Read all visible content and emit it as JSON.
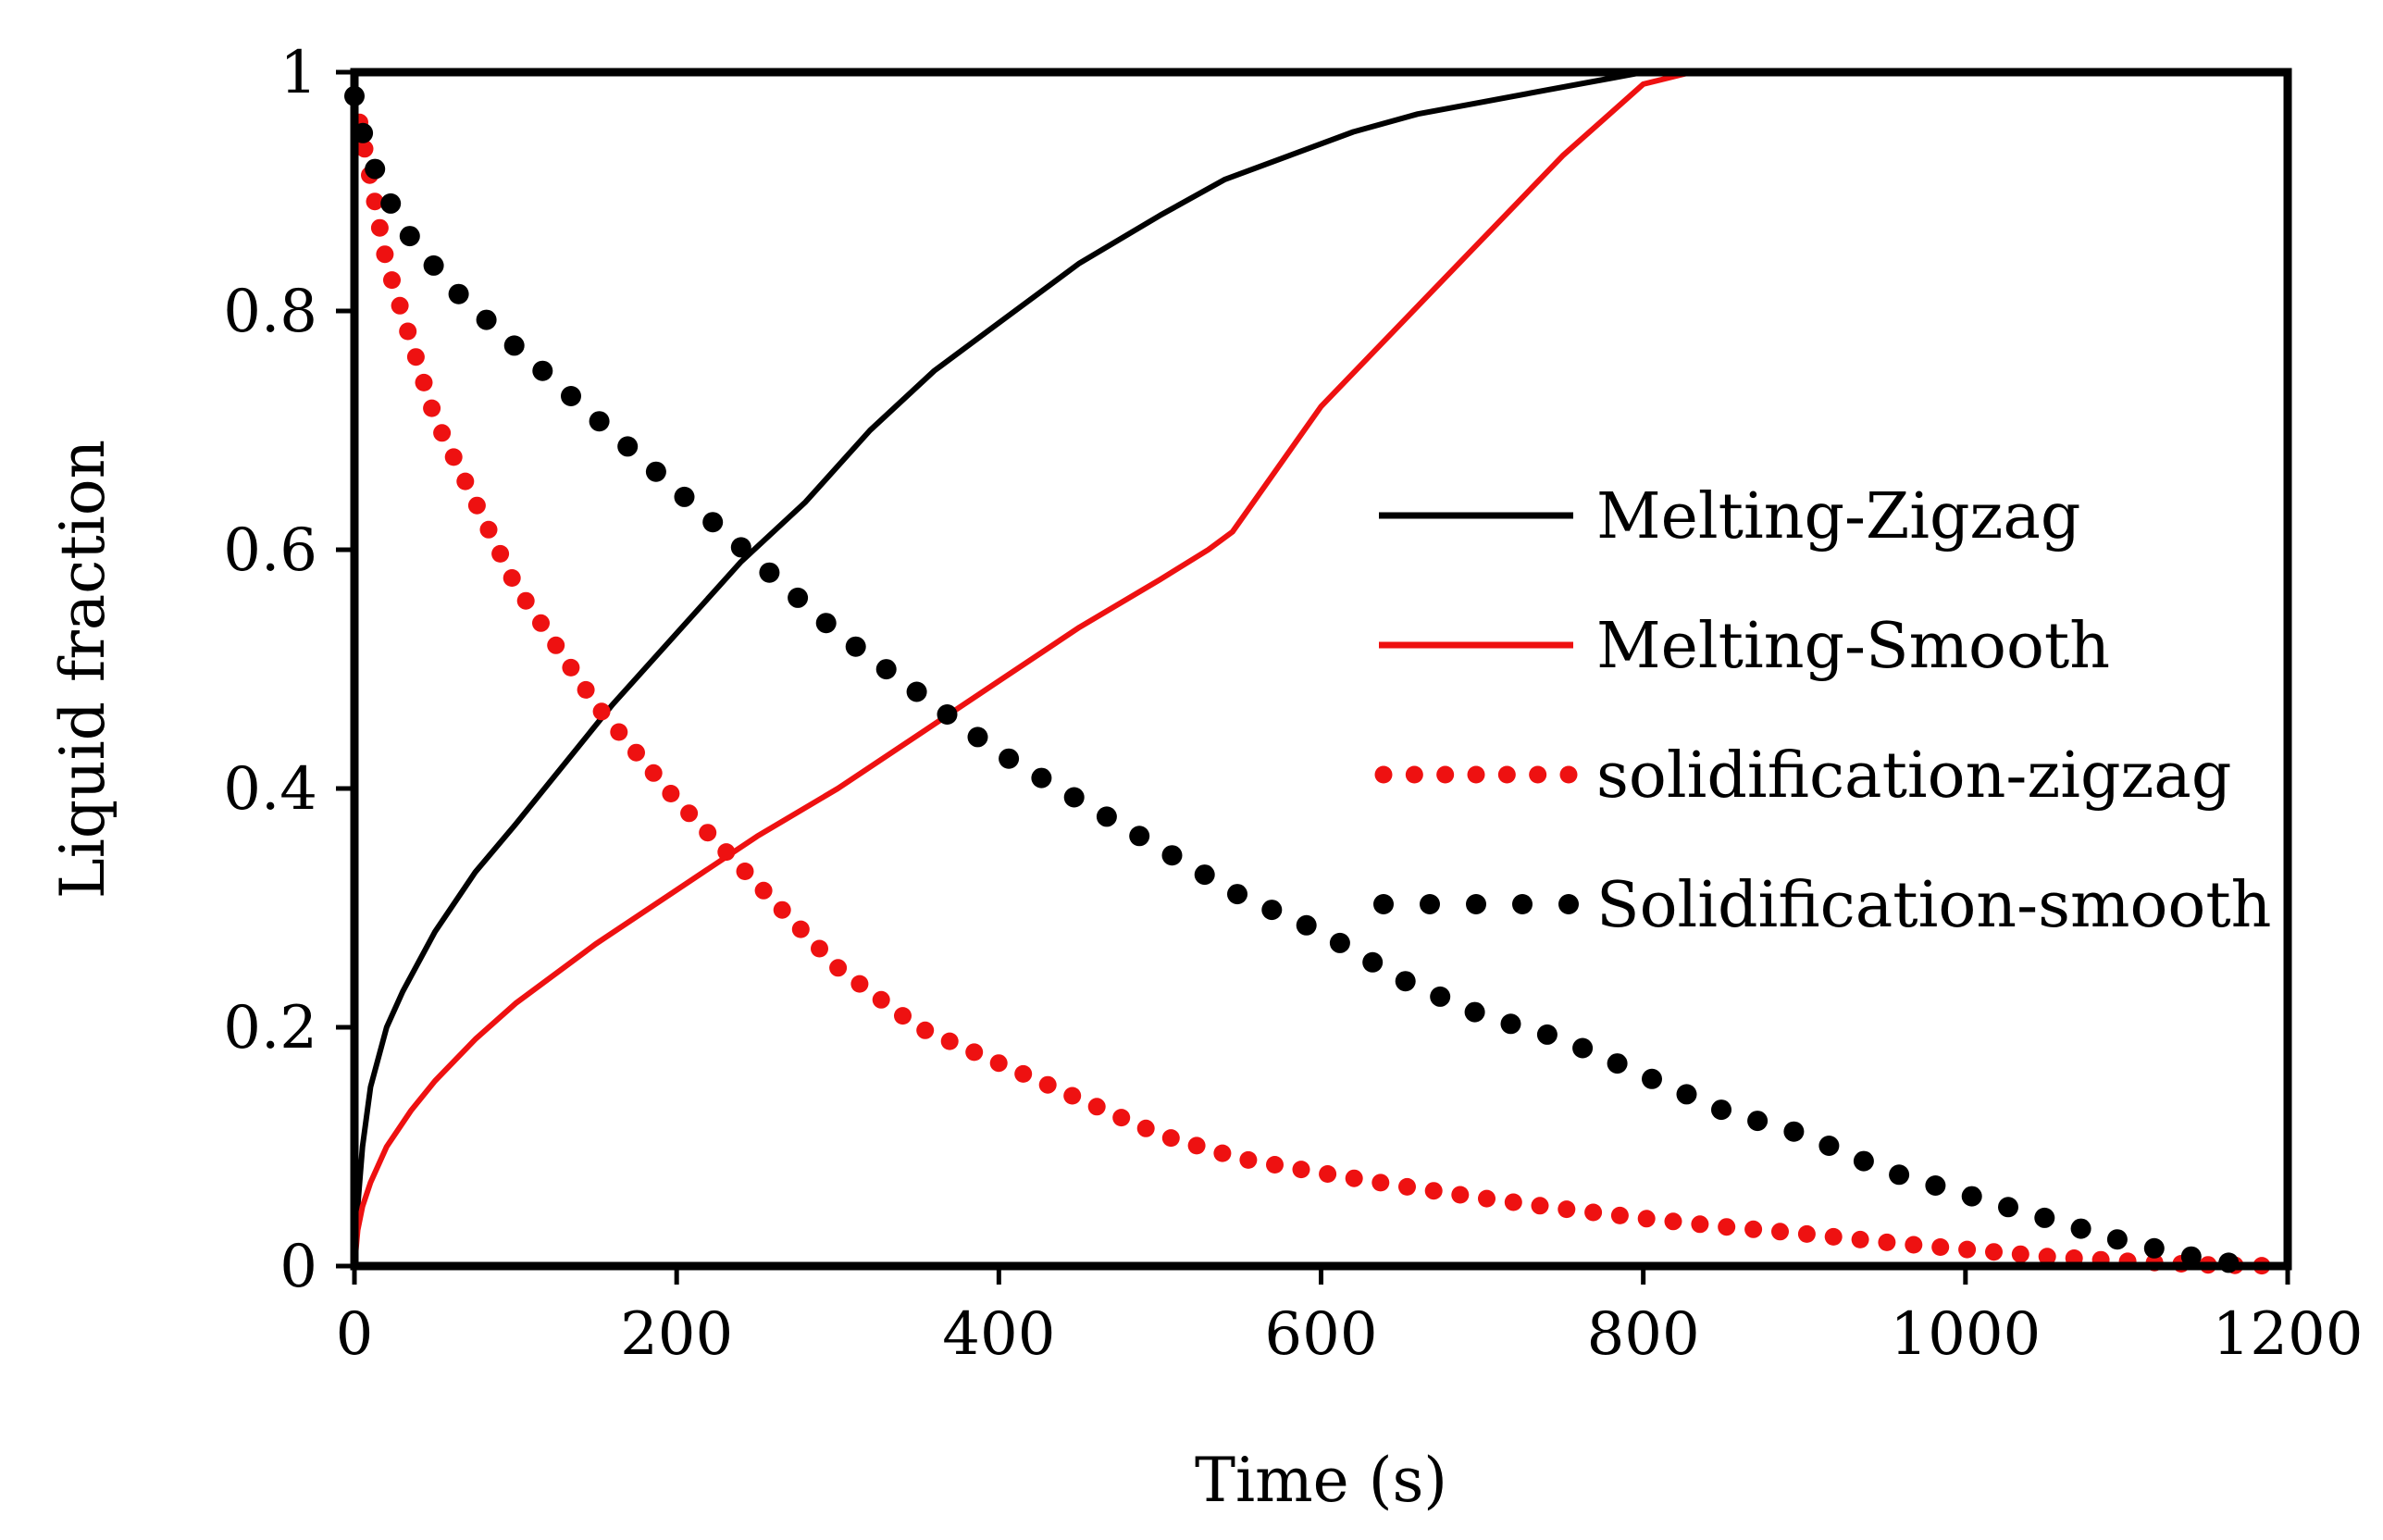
{
  "chart_data": {
    "type": "line",
    "title": "",
    "xlabel": "Time (s)",
    "ylabel": "Liquid fraction",
    "xlim": [
      0,
      1200
    ],
    "ylim": [
      0,
      1
    ],
    "xticks": [
      0,
      200,
      400,
      600,
      800,
      1000,
      1200
    ],
    "yticks": [
      0,
      0.2,
      0.4,
      0.6,
      0.8,
      1
    ],
    "ytick_labels": [
      "0",
      "0.2",
      "0.4",
      "0.6",
      "0.8",
      "1"
    ],
    "grid": false,
    "legend_position": "center-right",
    "series": [
      {
        "name": "Melting-Zigzag",
        "style": "solid",
        "color": "#000000",
        "x": [
          0,
          2,
          5,
          10,
          20,
          30,
          50,
          75,
          100,
          130,
          160,
          200,
          240,
          280,
          320,
          360,
          400,
          450,
          500,
          540,
          580,
          620,
          660,
          700,
          740,
          780,
          800,
          1200
        ],
        "y": [
          0,
          0.05,
          0.1,
          0.15,
          0.2,
          0.23,
          0.28,
          0.33,
          0.37,
          0.42,
          0.47,
          0.53,
          0.59,
          0.64,
          0.7,
          0.75,
          0.79,
          0.84,
          0.88,
          0.91,
          0.93,
          0.95,
          0.965,
          0.975,
          0.985,
          0.995,
          1.0,
          1.0
        ]
      },
      {
        "name": "Melting-Smooth",
        "style": "solid",
        "color": "#ee1111",
        "x": [
          0,
          2,
          5,
          10,
          20,
          35,
          50,
          75,
          100,
          150,
          200,
          250,
          300,
          350,
          400,
          450,
          500,
          530,
          545,
          600,
          650,
          700,
          750,
          800,
          830,
          850,
          1200
        ],
        "y": [
          0,
          0.03,
          0.05,
          0.07,
          0.1,
          0.13,
          0.155,
          0.19,
          0.22,
          0.27,
          0.315,
          0.36,
          0.4,
          0.445,
          0.49,
          0.535,
          0.575,
          0.6,
          0.615,
          0.72,
          0.79,
          0.86,
          0.93,
          0.99,
          1.0,
          1.0,
          1.0
        ]
      },
      {
        "name": "solidification-zigzag",
        "style": "dotted",
        "color": "#ee1111",
        "x": [
          0,
          20,
          50,
          75,
          100,
          125,
          150,
          175,
          200,
          250,
          300,
          350,
          400,
          450,
          500,
          550,
          600,
          650,
          700,
          750,
          800,
          850,
          900,
          950,
          1000,
          1050,
          1100,
          1150,
          1200
        ],
        "y": [
          0.98,
          0.84,
          0.71,
          0.64,
          0.57,
          0.52,
          0.47,
          0.43,
          0.39,
          0.32,
          0.25,
          0.2,
          0.17,
          0.14,
          0.11,
          0.09,
          0.078,
          0.067,
          0.057,
          0.048,
          0.04,
          0.033,
          0.027,
          0.02,
          0.014,
          0.008,
          0.004,
          0.001,
          0.0
        ]
      },
      {
        "name": "Solidification-smooth",
        "style": "dotted",
        "color": "#000000",
        "x": [
          0,
          5,
          15,
          30,
          60,
          100,
          150,
          200,
          250,
          300,
          350,
          400,
          450,
          500,
          550,
          600,
          650,
          700,
          750,
          800,
          850,
          900,
          950,
          1000,
          1050,
          1100,
          1150,
          1180
        ],
        "y": [
          0.98,
          0.95,
          0.91,
          0.87,
          0.82,
          0.77,
          0.71,
          0.65,
          0.59,
          0.53,
          0.48,
          0.43,
          0.39,
          0.35,
          0.31,
          0.28,
          0.24,
          0.21,
          0.19,
          0.16,
          0.13,
          0.11,
          0.08,
          0.06,
          0.04,
          0.02,
          0.005,
          0.0
        ]
      }
    ]
  }
}
